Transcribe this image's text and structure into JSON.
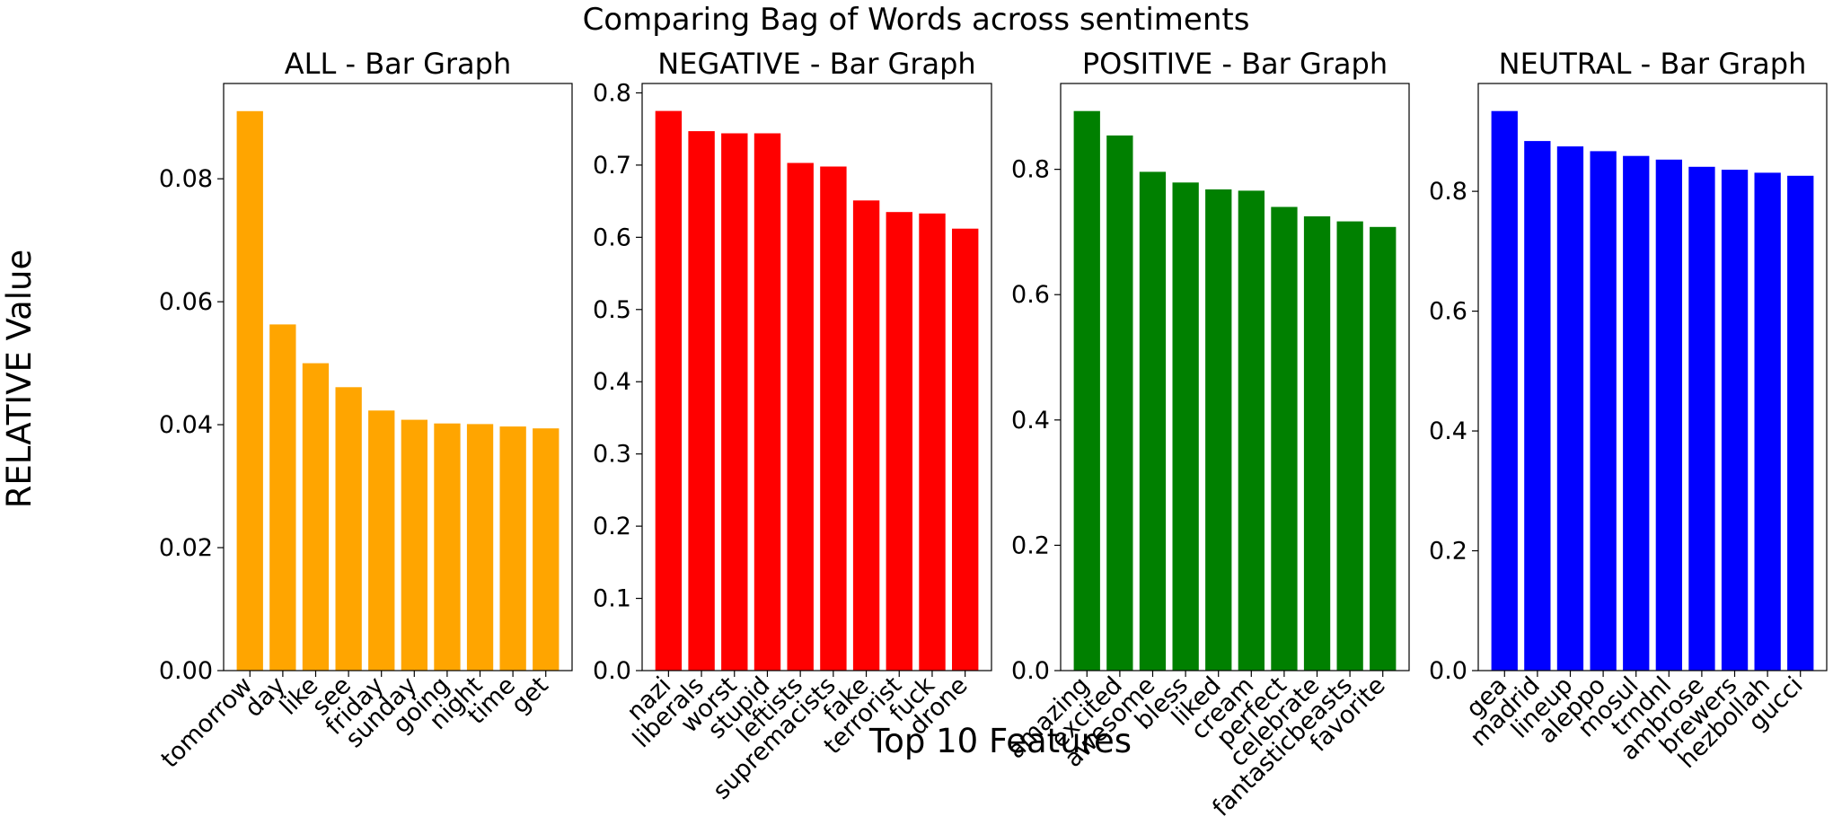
{
  "figure": {
    "title": "Comparing Bag of Words across sentiments",
    "ylabel": "RELATIVE Value",
    "xlabel": "Top 10 Features"
  },
  "chart_data": [
    {
      "type": "bar",
      "title": "ALL - Bar Graph",
      "color": "#ffa500",
      "categories": [
        "tomorrow",
        "day",
        "like",
        "see",
        "friday",
        "sunday",
        "going",
        "night",
        "time",
        "get"
      ],
      "values": [
        0.091,
        0.0563,
        0.05,
        0.0461,
        0.0423,
        0.0408,
        0.0402,
        0.0401,
        0.0397,
        0.0394
      ],
      "ylim": [
        0,
        0.0955
      ],
      "yticks": [
        0.0,
        0.02,
        0.04,
        0.06,
        0.08
      ],
      "yticklabels": [
        "0.00",
        "0.02",
        "0.04",
        "0.06",
        "0.08"
      ]
    },
    {
      "type": "bar",
      "title": "NEGATIVE - Bar Graph",
      "color": "#ff0000",
      "categories": [
        "nazi",
        "liberals",
        "worst",
        "stupid",
        "leftists",
        "supremacists",
        "fake",
        "terrorist",
        "fuck",
        "drone"
      ],
      "values": [
        0.775,
        0.747,
        0.744,
        0.744,
        0.703,
        0.698,
        0.651,
        0.635,
        0.633,
        0.612
      ],
      "ylim": [
        0,
        0.813
      ],
      "yticks": [
        0.0,
        0.1,
        0.2,
        0.3,
        0.4,
        0.5,
        0.6,
        0.7,
        0.8
      ],
      "yticklabels": [
        "0.0",
        "0.1",
        "0.2",
        "0.3",
        "0.4",
        "0.5",
        "0.6",
        "0.7",
        "0.8"
      ]
    },
    {
      "type": "bar",
      "title": "POSITIVE - Bar Graph",
      "color": "#008000",
      "categories": [
        "amazing",
        "excited",
        "awesome",
        "bless",
        "liked",
        "cream",
        "perfect",
        "celebrate",
        "fantasticbeasts",
        "favorite"
      ],
      "values": [
        0.893,
        0.854,
        0.796,
        0.779,
        0.768,
        0.766,
        0.74,
        0.725,
        0.717,
        0.708
      ],
      "ylim": [
        0,
        0.937
      ],
      "yticks": [
        0.0,
        0.2,
        0.4,
        0.6,
        0.8
      ],
      "yticklabels": [
        "0.0",
        "0.2",
        "0.4",
        "0.6",
        "0.8"
      ]
    },
    {
      "type": "bar",
      "title": "NEUTRAL - Bar Graph",
      "color": "#0000ff",
      "categories": [
        "gea",
        "madrid",
        "lineup",
        "aleppo",
        "mosul",
        "trndnl",
        "ambrose",
        "brewers",
        "hezbollah",
        "gucci"
      ],
      "values": [
        0.934,
        0.884,
        0.875,
        0.867,
        0.859,
        0.853,
        0.841,
        0.836,
        0.831,
        0.826
      ],
      "ylim": [
        0,
        0.98
      ],
      "yticks": [
        0.0,
        0.2,
        0.4,
        0.6,
        0.8
      ],
      "yticklabels": [
        "0.0",
        "0.2",
        "0.4",
        "0.6",
        "0.8"
      ]
    }
  ]
}
